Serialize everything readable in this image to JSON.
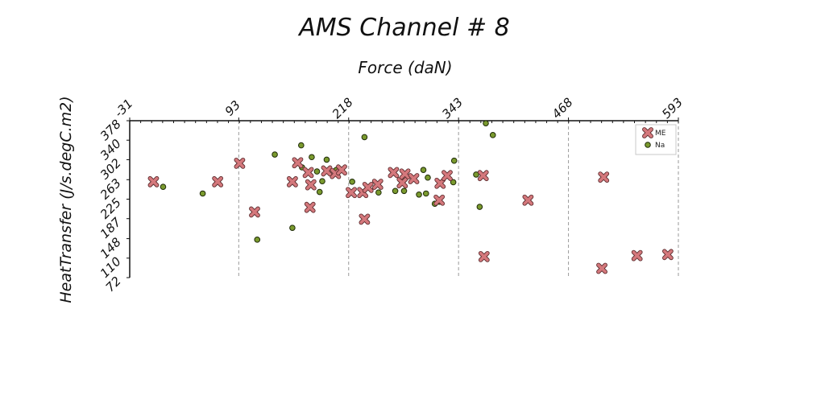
{
  "chart_data": {
    "type": "scatter",
    "title": "AMS Channel # 8",
    "xlabel": "Force (daN)",
    "ylabel": "HeatTransfer (J/s.degC.m2)",
    "xlim": [
      -31,
      593
    ],
    "ylim": [
      72,
      378
    ],
    "x_ticks": [
      "-31",
      "93",
      "218",
      "343",
      "468",
      "593"
    ],
    "y_ticks": [
      "72",
      "110",
      "148",
      "187",
      "225",
      "263",
      "302",
      "340",
      "378"
    ],
    "x_axis_position": "top",
    "grid": "vertical dashed",
    "legend_position": "top-right",
    "series": [
      {
        "name": "ME",
        "marker": "x",
        "color": "#d4787c",
        "points": [
          [
            -4,
            259
          ],
          [
            69,
            259
          ],
          [
            94,
            295
          ],
          [
            111,
            200
          ],
          [
            154,
            259
          ],
          [
            160,
            296
          ],
          [
            172,
            277
          ],
          [
            174,
            209
          ],
          [
            175,
            253
          ],
          [
            193,
            280
          ],
          [
            203,
            275
          ],
          [
            210,
            282
          ],
          [
            221,
            238
          ],
          [
            234,
            238
          ],
          [
            236,
            186
          ],
          [
            240,
            248
          ],
          [
            251,
            254
          ],
          [
            269,
            277
          ],
          [
            279,
            257
          ],
          [
            282,
            274
          ],
          [
            292,
            265
          ],
          [
            321,
            223
          ],
          [
            322,
            256
          ],
          [
            330,
            271
          ],
          [
            371,
            271
          ],
          [
            372,
            113
          ],
          [
            422,
            223
          ],
          [
            506,
            90
          ],
          [
            508,
            268
          ],
          [
            546,
            115
          ],
          [
            581,
            117
          ]
        ]
      },
      {
        "name": "Na",
        "marker": "o",
        "color": "#7a9a2e",
        "points": [
          [
            7,
            249
          ],
          [
            52,
            236
          ],
          [
            114,
            146
          ],
          [
            134,
            312
          ],
          [
            154,
            169
          ],
          [
            164,
            330
          ],
          [
            165,
            287
          ],
          [
            176,
            307
          ],
          [
            182,
            279
          ],
          [
            185,
            239
          ],
          [
            188,
            260
          ],
          [
            193,
            302
          ],
          [
            204,
            282
          ],
          [
            222,
            259
          ],
          [
            236,
            346
          ],
          [
            252,
            238
          ],
          [
            271,
            241
          ],
          [
            281,
            241
          ],
          [
            298,
            234
          ],
          [
            303,
            282
          ],
          [
            306,
            236
          ],
          [
            308,
            267
          ],
          [
            316,
            216
          ],
          [
            321,
            220
          ],
          [
            338,
            300
          ],
          [
            337,
            258
          ],
          [
            363,
            273
          ],
          [
            367,
            210
          ],
          [
            374,
            373
          ],
          [
            382,
            350
          ]
        ]
      }
    ]
  }
}
